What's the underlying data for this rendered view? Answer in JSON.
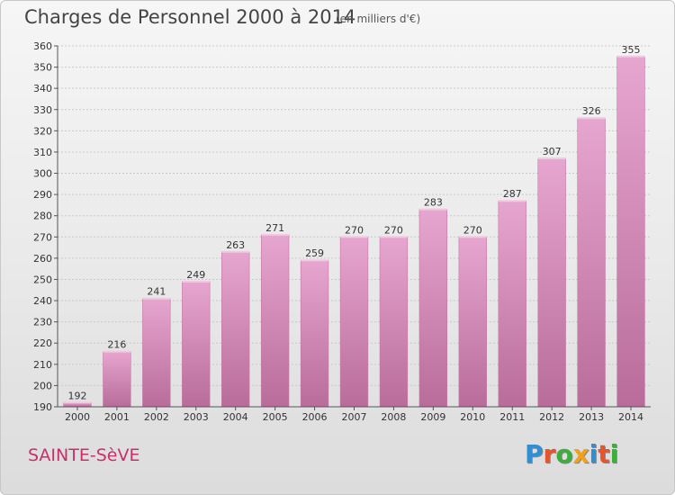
{
  "chart_data": {
    "type": "bar",
    "title": "Charges de Personnel 2000 à 2014",
    "subtitle": "(en milliers d'€)",
    "categories": [
      "2000",
      "2001",
      "2002",
      "2003",
      "2004",
      "2005",
      "2006",
      "2007",
      "2008",
      "2009",
      "2010",
      "2011",
      "2012",
      "2013",
      "2014"
    ],
    "values": [
      192,
      216,
      241,
      249,
      263,
      271,
      259,
      270,
      270,
      283,
      270,
      287,
      307,
      326,
      355
    ],
    "ylim": [
      190,
      360
    ],
    "yticks": [
      190,
      200,
      210,
      220,
      230,
      240,
      250,
      260,
      270,
      280,
      290,
      300,
      310,
      320,
      330,
      340,
      350,
      360
    ],
    "grid": true,
    "bar_color": "#d98ab8"
  },
  "footer": {
    "commune": "SAINTE-SèVE",
    "logo_letters": [
      "P",
      "r",
      "o",
      "x",
      "i",
      "t",
      "i"
    ],
    "logo_colors": [
      "#2f8fd6",
      "#e8542b",
      "#3cae3c",
      "#f0a21a",
      "#2f8fd6",
      "#e8542b",
      "#3cae3c"
    ]
  }
}
